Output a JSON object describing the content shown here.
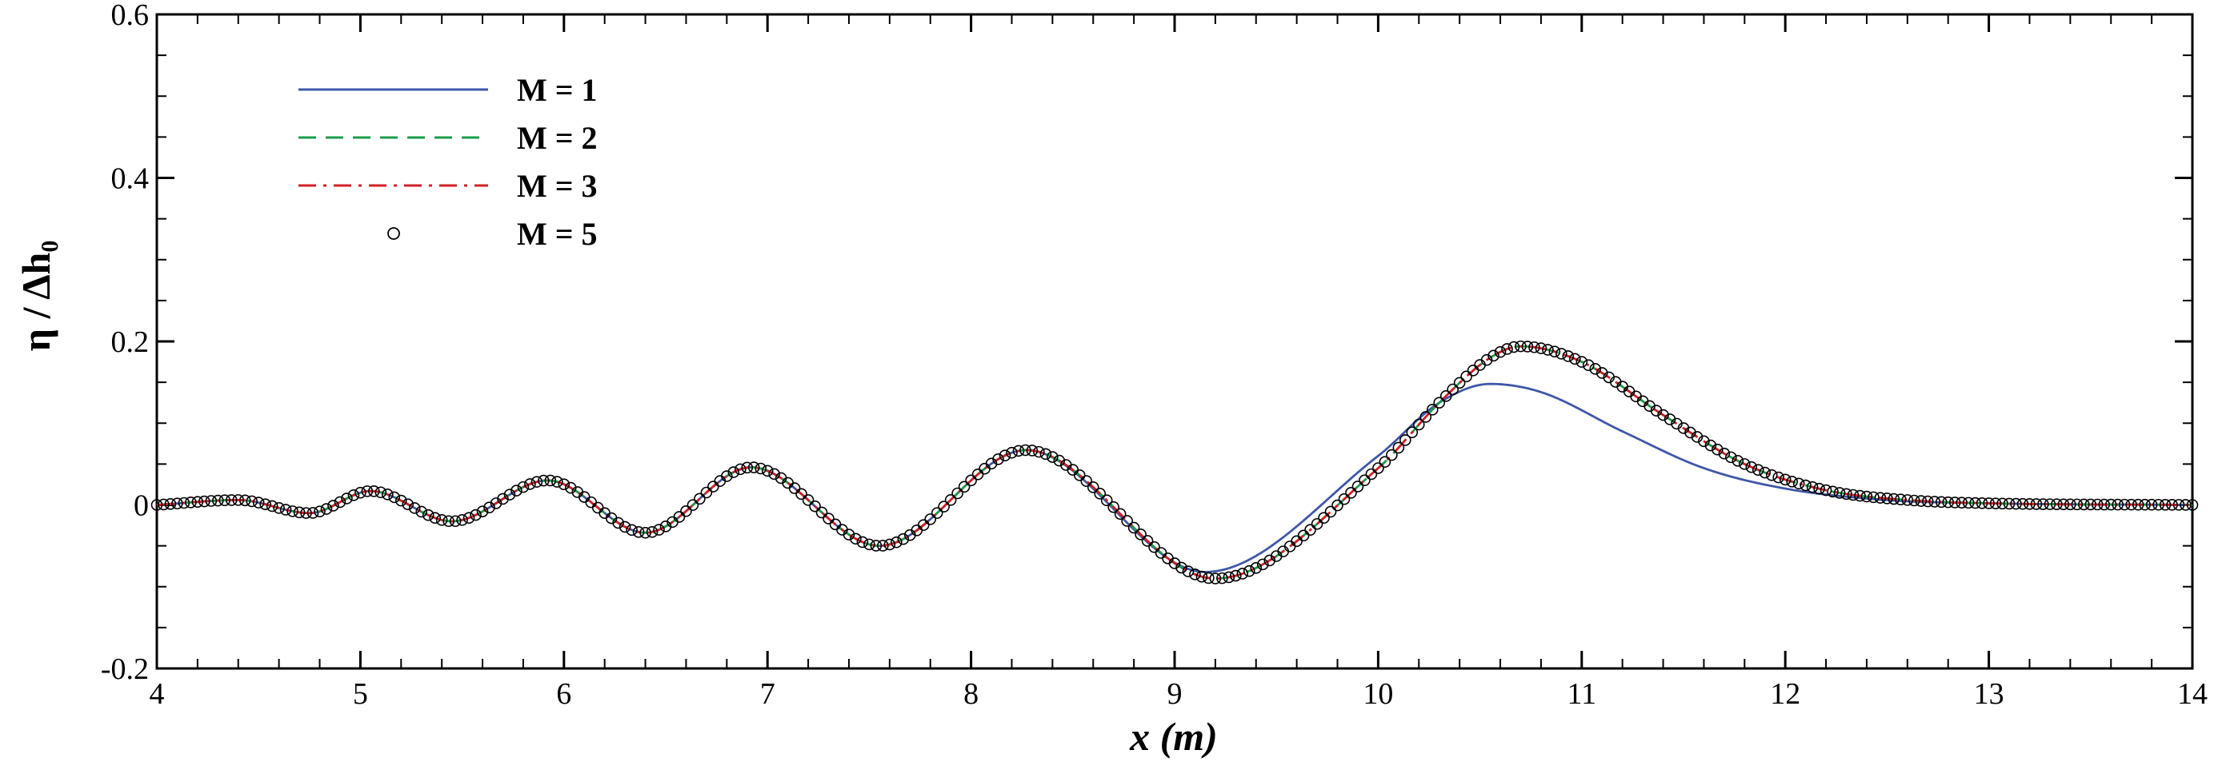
{
  "chart_data": {
    "type": "line",
    "title": "",
    "xlabel": "x (m)",
    "ylabel": "η / Δh₀",
    "xlim": [
      4,
      14
    ],
    "ylim": [
      -0.2,
      0.6
    ],
    "x_ticks": [
      4,
      5,
      6,
      7,
      8,
      9,
      10,
      11,
      12,
      13,
      14
    ],
    "y_ticks": [
      -0.2,
      0,
      0.2,
      0.4,
      0.6
    ],
    "x_tick_labels": [
      "4",
      "5",
      "6",
      "7",
      "8",
      "9",
      "10",
      "11",
      "12",
      "13",
      "14"
    ],
    "y_tick_labels": [
      "-0.2",
      "0",
      "0.2",
      "0.4",
      "0.6"
    ],
    "grid": false,
    "legend_position": "top-left",
    "series": [
      {
        "name": "M = 1",
        "style": "solid",
        "color": "#3f57a8",
        "x": [
          4.0,
          4.4,
          4.75,
          5.05,
          5.45,
          5.92,
          6.4,
          6.92,
          7.55,
          8.27,
          9.15,
          10.0,
          10.3,
          10.55,
          10.8,
          11.2,
          11.6,
          12.0,
          12.5,
          13.0,
          14.0
        ],
        "y": [
          0.0,
          0.006,
          -0.01,
          0.017,
          -0.02,
          0.03,
          -0.034,
          0.046,
          -0.05,
          0.067,
          -0.082,
          0.06,
          0.125,
          0.148,
          0.138,
          0.09,
          0.045,
          0.02,
          0.006,
          0.002,
          0.0
        ]
      },
      {
        "name": "M = 2",
        "style": "dashed",
        "color": "#1a9e4a",
        "x": [
          4.0,
          4.4,
          4.75,
          5.05,
          5.45,
          5.92,
          6.4,
          6.92,
          7.55,
          8.27,
          9.2,
          10.0,
          10.3,
          10.55,
          10.7,
          11.0,
          11.4,
          11.8,
          12.2,
          12.6,
          13.0,
          14.0
        ],
        "y": [
          0.0,
          0.006,
          -0.01,
          0.017,
          -0.02,
          0.03,
          -0.034,
          0.046,
          -0.05,
          0.067,
          -0.09,
          0.045,
          0.125,
          0.18,
          0.194,
          0.175,
          0.11,
          0.05,
          0.018,
          0.006,
          0.002,
          0.0
        ]
      },
      {
        "name": "M = 3",
        "style": "dashdot",
        "color": "#d11f26",
        "x": [
          4.0,
          4.4,
          4.75,
          5.05,
          5.45,
          5.92,
          6.4,
          6.92,
          7.55,
          8.27,
          9.2,
          10.0,
          10.3,
          10.55,
          10.7,
          11.0,
          11.4,
          11.8,
          12.2,
          12.6,
          13.0,
          14.0
        ],
        "y": [
          0.0,
          0.006,
          -0.01,
          0.017,
          -0.02,
          0.03,
          -0.034,
          0.046,
          -0.05,
          0.067,
          -0.09,
          0.045,
          0.125,
          0.18,
          0.194,
          0.175,
          0.11,
          0.05,
          0.018,
          0.006,
          0.002,
          0.0
        ]
      },
      {
        "name": "M = 5",
        "style": "markers",
        "color": "#000000",
        "x": [
          4.0,
          4.4,
          4.75,
          5.05,
          5.45,
          5.92,
          6.4,
          6.92,
          7.55,
          8.27,
          9.2,
          10.0,
          10.3,
          10.55,
          10.7,
          11.0,
          11.4,
          11.8,
          12.2,
          12.6,
          13.0,
          14.0
        ],
        "y": [
          0.0,
          0.006,
          -0.01,
          0.017,
          -0.02,
          0.03,
          -0.034,
          0.046,
          -0.05,
          0.067,
          -0.09,
          0.045,
          0.125,
          0.18,
          0.194,
          0.175,
          0.11,
          0.05,
          0.018,
          0.006,
          0.002,
          0.0
        ]
      }
    ]
  }
}
